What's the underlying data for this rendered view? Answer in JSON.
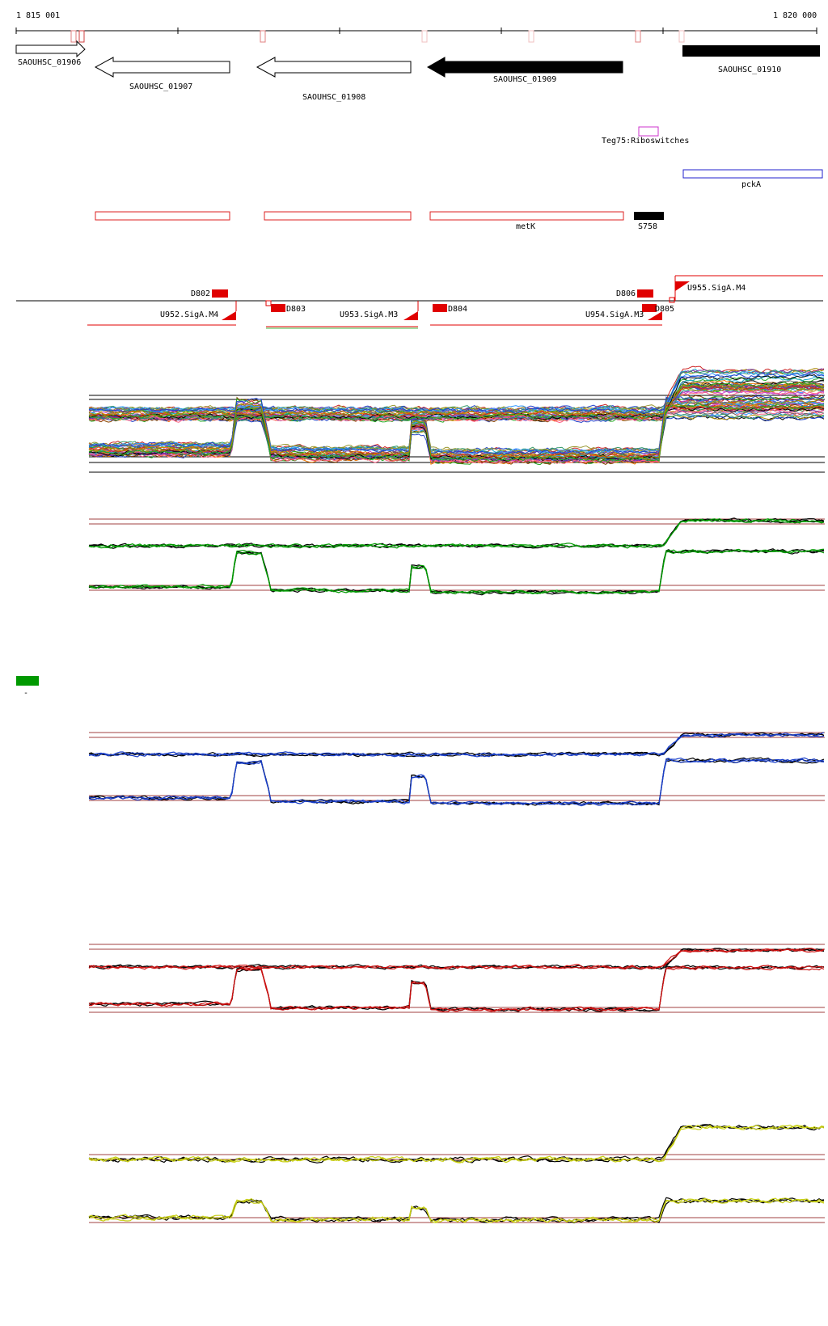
{
  "coordinates": {
    "start": "1 815 001",
    "end": "1 820 000"
  },
  "genes": [
    {
      "label": "SAOUHSC_01906",
      "strand": "+",
      "style": "open"
    },
    {
      "label": "SAOUHSC_01907",
      "strand": "-",
      "style": "open"
    },
    {
      "label": "SAOUHSC_01908",
      "strand": "-",
      "style": "open"
    },
    {
      "label": "SAOUHSC_01909",
      "strand": "-",
      "style": "filled"
    },
    {
      "label": "SAOUHSC_01910",
      "strand": "+",
      "style": "filled"
    }
  ],
  "riboswitch": {
    "label": "Teg75:Riboswitches",
    "color": "#cc33cc"
  },
  "gene_names": [
    {
      "label": "pckA",
      "color": "#2222cc"
    },
    {
      "label": "metK",
      "color": "#dd2222"
    },
    {
      "label": "S758",
      "color": "#000000"
    }
  ],
  "operon_labels": {
    "down": [
      "D802",
      "D803",
      "D804",
      "D805",
      "D806"
    ],
    "up": [
      "U952.SigA.M4",
      "U953.SigA.M3",
      "U954.SigA.M3",
      "U955.SigA.M4"
    ]
  },
  "legend": {
    "marker": "-",
    "color": "#009900"
  },
  "track_colors": {
    "combined": "#009900",
    "set_a": "#1a3fc9",
    "set_b": "#cc1111",
    "set_c": "#c8d014",
    "reference": "#000000",
    "threshold": "#a04040"
  }
}
